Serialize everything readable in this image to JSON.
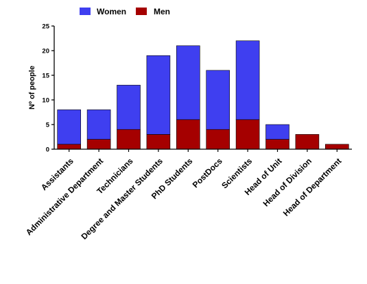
{
  "chart_data": {
    "type": "bar",
    "stacked": true,
    "title": "",
    "xlabel": "",
    "ylabel": "Nº of people",
    "ylim": [
      0,
      25
    ],
    "yticks": [
      0,
      5,
      10,
      15,
      20,
      25
    ],
    "grid": false,
    "legend_position": "top-left",
    "categories": [
      "Assistants",
      "Administrative Department",
      "Technicians",
      "Degree and Master Students",
      "PhD Students",
      "PostDocs",
      "Scientists",
      "Head of Unit",
      "Head of Division",
      "Head of Department"
    ],
    "series": [
      {
        "name": "Men",
        "color": "#a50000",
        "values": [
          1,
          2,
          4,
          3,
          6,
          4,
          6,
          2,
          3,
          1
        ]
      },
      {
        "name": "Women",
        "color": "#3f3ff0",
        "values": [
          7,
          6,
          9,
          16,
          15,
          12,
          16,
          3,
          0,
          0
        ]
      }
    ],
    "legend": [
      {
        "name": "Women",
        "color": "#3f3ff0"
      },
      {
        "name": "Men",
        "color": "#a50000"
      }
    ]
  }
}
